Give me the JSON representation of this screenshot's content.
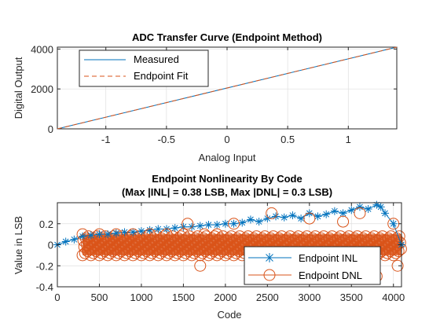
{
  "colors": {
    "blue": "#0072BD",
    "orange": "#D95319",
    "grid": "#dfdfdf",
    "axis": "#262626"
  },
  "chart_data": [
    {
      "type": "line",
      "title": "ADC Transfer Curve (Endpoint Method)",
      "xlabel": "Analog Input",
      "ylabel": "Digital Output",
      "xlim": [
        -1.4,
        1.4
      ],
      "ylim": [
        0,
        4095
      ],
      "xticks": [
        -1,
        -0.5,
        0,
        0.5,
        1
      ],
      "xtick_labels": [
        "-1",
        "-0.5",
        "0",
        "0.5",
        "1"
      ],
      "yticks": [
        0,
        2000,
        4000
      ],
      "ytick_labels": [
        "0",
        "2000",
        "4000"
      ],
      "grid": true,
      "legend_position": "top-left",
      "series": [
        {
          "name": "Measured",
          "style": "solid",
          "color": "#0072BD",
          "x": [
            -1.4,
            1.4
          ],
          "y": [
            0,
            4095
          ]
        },
        {
          "name": "Endpoint Fit",
          "style": "dashed",
          "color": "#D95319",
          "x": [
            -1.4,
            1.4
          ],
          "y": [
            0,
            4095
          ]
        }
      ]
    },
    {
      "type": "scatter",
      "title": "Endpoint Nonlinearity By Code",
      "subtitle": "(Max |INL| = 0.38 LSB, Max |DNL| = 0.3 LSB)",
      "xlabel": "Code",
      "ylabel": "Value in LSB",
      "xlim": [
        0,
        4096
      ],
      "ylim": [
        -0.4,
        0.4
      ],
      "xticks": [
        0,
        500,
        1000,
        1500,
        2000,
        2500,
        3000,
        3500,
        4000
      ],
      "xtick_labels": [
        "0",
        "500",
        "1000",
        "1500",
        "2000",
        "2500",
        "3000",
        "3500",
        "4000"
      ],
      "yticks": [
        -0.4,
        -0.2,
        0,
        0.2
      ],
      "ytick_labels": [
        "-0.4",
        "-0.2",
        "0",
        "0.2"
      ],
      "grid": true,
      "legend_position": "bottom-right",
      "series": [
        {
          "name": "Endpoint INL",
          "marker": "asterisk",
          "color": "#0072BD",
          "x": [
            0,
            100,
            200,
            300,
            400,
            500,
            600,
            700,
            800,
            900,
            1000,
            1100,
            1200,
            1300,
            1400,
            1500,
            1600,
            1700,
            1800,
            1900,
            2000,
            2100,
            2200,
            2300,
            2400,
            2500,
            2600,
            2700,
            2800,
            2900,
            3000,
            3100,
            3200,
            3300,
            3400,
            3500,
            3600,
            3700,
            3800,
            3850,
            3900,
            4000,
            4095
          ],
          "y": [
            0,
            0.03,
            0.05,
            0.08,
            0.09,
            0.1,
            0.1,
            0.11,
            0.12,
            0.12,
            0.13,
            0.14,
            0.15,
            0.15,
            0.16,
            0.17,
            0.17,
            0.18,
            0.19,
            0.19,
            0.2,
            0.2,
            0.21,
            0.24,
            0.22,
            0.25,
            0.27,
            0.26,
            0.28,
            0.25,
            0.3,
            0.27,
            0.29,
            0.32,
            0.3,
            0.33,
            0.36,
            0.34,
            0.38,
            0.36,
            0.3,
            0.2,
            0
          ]
        },
        {
          "name": "Endpoint DNL",
          "marker": "circle",
          "color": "#D95319",
          "x": [
            300,
            500,
            700,
            900,
            1100,
            1300,
            1500,
            1550,
            1700,
            1750,
            1900,
            2100,
            2300,
            2550,
            2800,
            3000,
            3200,
            3400,
            3600,
            3800,
            4000,
            4050
          ],
          "y": [
            0.1,
            0.1,
            0.1,
            0.1,
            0.1,
            0.1,
            0.1,
            0.2,
            -0.2,
            0.1,
            0.1,
            0.2,
            -0.3,
            0.3,
            -0.3,
            0.25,
            -0.25,
            0.22,
            0.3,
            -0.3,
            0.2,
            -0.2
          ],
          "band": [
            -0.1,
            0.1
          ]
        }
      ]
    }
  ]
}
